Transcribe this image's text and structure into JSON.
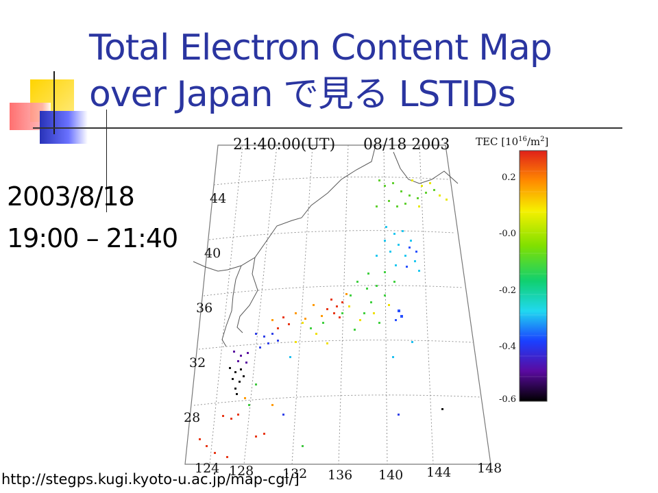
{
  "slide": {
    "title_line1": "Total Electron Content Map",
    "title_line2": "over Japan で見る LSTIDs",
    "date": "2003/8/18",
    "time_range": "19:00 – 21:40",
    "url": "http://stegps.kugi.kyoto-u.ac.jp/map-cgi/]"
  },
  "map": {
    "time_label": "21:40:00(UT)",
    "date_label": "08/18 2003",
    "lat_labels": [
      "44",
      "40",
      "36",
      "32",
      "28"
    ],
    "lon_labels": [
      "124",
      "128",
      "132",
      "136",
      "140",
      "144",
      "148"
    ]
  },
  "colorbar": {
    "label": "TEC [10",
    "label_exp": "16",
    "label_unit": "/m",
    "label_unit_exp": "2",
    "label_close": "]",
    "ticks": [
      "0.2",
      "-0.0",
      "-0.2",
      "-0.4",
      "-0.6"
    ]
  },
  "colors": {
    "title": "#2a35a0",
    "accent_yellow": "#ffd400",
    "accent_red": "#ff6060",
    "accent_blue": "#2832b8"
  }
}
